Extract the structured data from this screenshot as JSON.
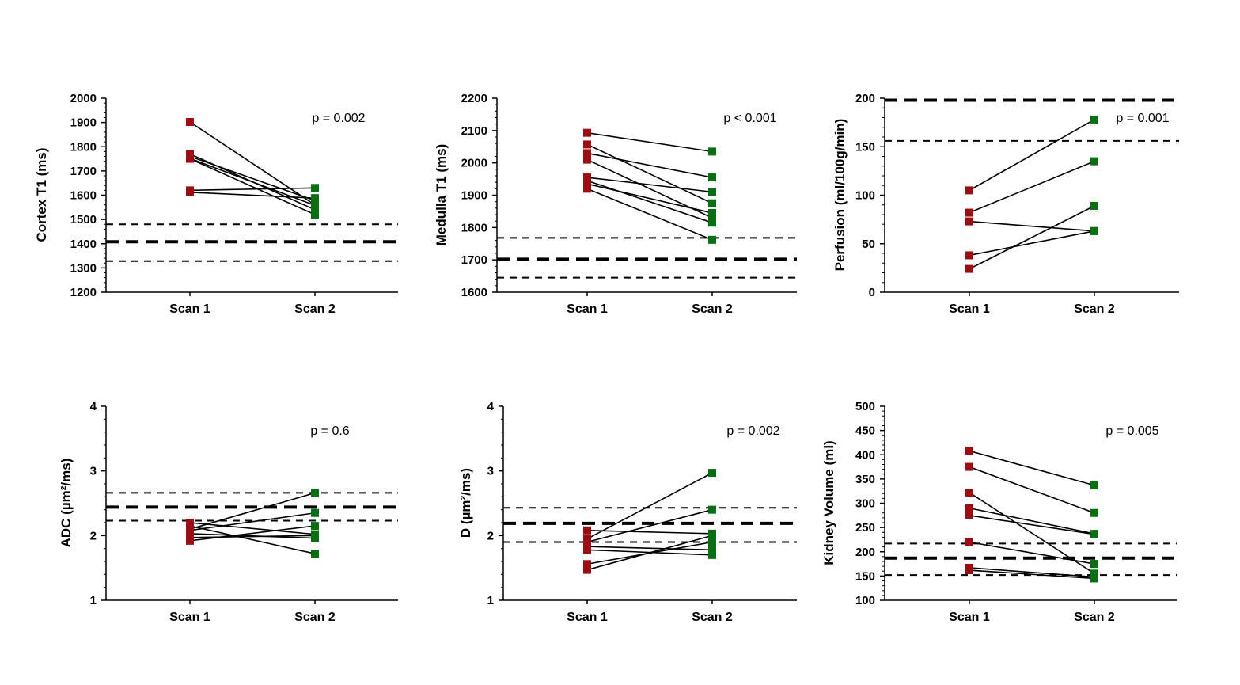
{
  "chart_data": [
    {
      "type": "line",
      "ylabel": "Cortex T1 (ms)",
      "categories": [
        "Scan 1",
        "Scan 2"
      ],
      "ylim": [
        1200,
        2000
      ],
      "yticks": [
        1200,
        1300,
        1400,
        1500,
        1600,
        1700,
        1800,
        1900,
        2000
      ],
      "annotation": "p = 0.002",
      "reference_lines": [
        {
          "value": 1480,
          "style": "dashed"
        },
        {
          "value": 1408,
          "style": "bold-dashed"
        },
        {
          "value": 1328,
          "style": "dashed"
        }
      ],
      "pairs": [
        [
          1902,
          1560
        ],
        [
          1770,
          1540
        ],
        [
          1760,
          1578
        ],
        [
          1750,
          1520
        ],
        [
          1620,
          1630
        ],
        [
          1612,
          1588
        ],
        [
          1752,
          1558
        ]
      ]
    },
    {
      "type": "line",
      "ylabel": "Medulla T1 (ms)",
      "categories": [
        "Scan 1",
        "Scan 2"
      ],
      "ylim": [
        1600,
        2200
      ],
      "yticks": [
        1600,
        1700,
        1800,
        1900,
        2000,
        2100,
        2200
      ],
      "annotation": "p < 0.001",
      "reference_lines": [
        {
          "value": 1768,
          "style": "dashed"
        },
        {
          "value": 1702,
          "style": "bold-dashed"
        },
        {
          "value": 1645,
          "style": "dashed"
        }
      ],
      "pairs": [
        [
          2093,
          2035
        ],
        [
          2057,
          1875
        ],
        [
          2030,
          1955
        ],
        [
          2010,
          1830
        ],
        [
          1955,
          1910
        ],
        [
          1935,
          1845
        ],
        [
          1920,
          1762
        ],
        [
          1945,
          1815
        ]
      ]
    },
    {
      "type": "line",
      "ylabel": "Perfusion (ml/100g/min)",
      "categories": [
        "Scan 1",
        "Scan 2"
      ],
      "ylim": [
        0,
        200
      ],
      "yticks": [
        0,
        50,
        100,
        150,
        200
      ],
      "annotation": "p = 0.001",
      "reference_lines": [
        {
          "value": 198,
          "style": "bold-dashed"
        },
        {
          "value": 156,
          "style": "dashed"
        }
      ],
      "pairs": [
        [
          105,
          178
        ],
        [
          82,
          135
        ],
        [
          73,
          63
        ],
        [
          38,
          63
        ],
        [
          24,
          89
        ]
      ]
    },
    {
      "type": "line",
      "ylabel": "ADC (µm²/ms)",
      "categories": [
        "Scan 1",
        "Scan 2"
      ],
      "ylim": [
        1,
        4
      ],
      "yticks": [
        1,
        2,
        3,
        4
      ],
      "annotation": "p = 0.6",
      "reference_lines": [
        {
          "value": 2.66,
          "style": "dashed"
        },
        {
          "value": 2.44,
          "style": "bold-dashed"
        },
        {
          "value": 2.23,
          "style": "dashed"
        }
      ],
      "pairs": [
        [
          2.2,
          2.02
        ],
        [
          2.1,
          2.66
        ],
        [
          2.08,
          2.35
        ],
        [
          2.03,
          1.96
        ],
        [
          1.97,
          2.0
        ],
        [
          1.92,
          2.15
        ],
        [
          2.15,
          1.72
        ]
      ]
    },
    {
      "type": "line",
      "ylabel": "D (µm²/ms)",
      "categories": [
        "Scan 1",
        "Scan 2"
      ],
      "ylim": [
        1,
        4
      ],
      "yticks": [
        1,
        2,
        3,
        4
      ],
      "annotation": "p = 0.002",
      "reference_lines": [
        {
          "value": 2.43,
          "style": "dashed"
        },
        {
          "value": 2.19,
          "style": "bold-dashed"
        },
        {
          "value": 1.9,
          "style": "dashed"
        }
      ],
      "pairs": [
        [
          2.08,
          2.03
        ],
        [
          1.95,
          2.97
        ],
        [
          1.9,
          2.4
        ],
        [
          1.83,
          1.78
        ],
        [
          1.56,
          1.9
        ],
        [
          1.47,
          2.0
        ],
        [
          1.78,
          1.7
        ]
      ]
    },
    {
      "type": "line",
      "ylabel": "Kidney Volume (ml)",
      "categories": [
        "Scan 1",
        "Scan 2"
      ],
      "ylim": [
        100,
        500
      ],
      "yticks": [
        100,
        150,
        200,
        250,
        300,
        350,
        400,
        450,
        500
      ],
      "annotation": "p = 0.005",
      "reference_lines": [
        {
          "value": 217,
          "style": "dashed"
        },
        {
          "value": 187,
          "style": "bold-dashed"
        },
        {
          "value": 152,
          "style": "dashed"
        }
      ],
      "pairs": [
        [
          408,
          337
        ],
        [
          375,
          280
        ],
        [
          322,
          155
        ],
        [
          290,
          237
        ],
        [
          275,
          236
        ],
        [
          220,
          175
        ],
        [
          167,
          148
        ],
        [
          162,
          145
        ]
      ]
    }
  ],
  "colors": {
    "scan1": "#9b0f12",
    "scan2": "#0a6e12",
    "line": "#000000"
  }
}
